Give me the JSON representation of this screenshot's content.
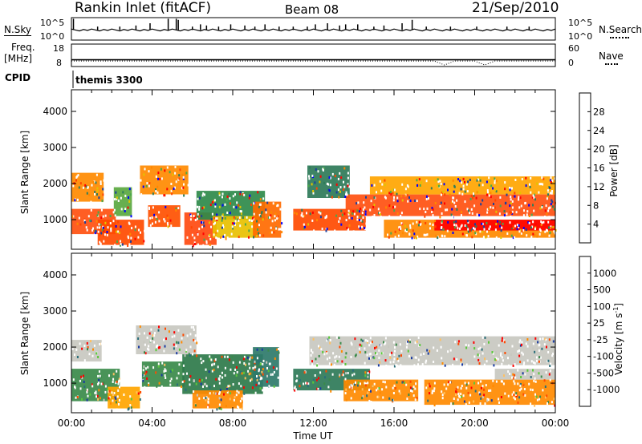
{
  "header": {
    "station": "Rankin Inlet (fitACF)",
    "beam": "Beam 08",
    "date": "21/Sep/2010"
  },
  "panel_labels": {
    "nsky": "N.Sky",
    "nsearch": "N.Search",
    "freq": "Freq.",
    "freq_unit": "[MHz]",
    "nave": "Nave",
    "cpid": "CPID",
    "cpid_value": "themis 3300"
  },
  "chart_data": [
    {
      "type": "line",
      "name": "noise",
      "left_axis": {
        "label": "N.Sky",
        "ticks": [
          "10^5",
          "10^0"
        ]
      },
      "right_axis": {
        "label": "N.Search",
        "ticks": [
          "10^5",
          "10^0"
        ]
      },
      "x": {
        "range_hours": [
          0,
          24
        ]
      },
      "baseline_level": 0.45,
      "spike_hours": [
        0.1,
        1.3,
        2.4,
        3.2,
        3.9,
        4.8,
        5.2,
        5.3,
        6.0,
        6.4,
        6.7,
        7.3,
        7.9,
        8.6,
        9.1,
        9.6,
        10.3,
        11.0,
        11.7,
        12.1,
        12.7,
        13.3,
        13.6,
        14.2,
        15.0,
        15.5,
        16.4,
        16.9,
        17.6,
        18.8,
        20.1,
        21.6,
        22.7
      ],
      "spike_levels": [
        0.95,
        0.6,
        0.6,
        0.65,
        0.75,
        0.95,
        0.95,
        0.9,
        0.6,
        0.7,
        0.65,
        0.6,
        0.7,
        0.65,
        0.6,
        0.7,
        0.6,
        0.6,
        0.6,
        0.7,
        0.75,
        0.65,
        0.7,
        0.7,
        0.6,
        0.65,
        0.75,
        0.9,
        0.6,
        0.6,
        0.6,
        0.6,
        0.6
      ]
    },
    {
      "type": "line",
      "name": "frequency-nave",
      "left_axis": {
        "label": "Freq. [MHz]",
        "ticks": [
          "18",
          "8"
        ],
        "range": [
          8,
          18
        ]
      },
      "right_axis": {
        "label": "Nave",
        "ticks": [
          "60",
          "0"
        ],
        "range": [
          0,
          60
        ]
      },
      "freq_mhz": 11,
      "dip_hours": [
        18.3,
        20.3
      ]
    },
    {
      "type": "heatmap",
      "name": "Power",
      "ylabel": "Slant Range [km]",
      "yticks": [
        "4000",
        "3000",
        "2000",
        "1000"
      ],
      "ylim": [
        180,
        4600
      ],
      "colorbar_label": "Power [dB]",
      "colorbar_ticks": [
        "28",
        "24",
        "20",
        "16",
        "12",
        "8",
        "4"
      ],
      "colorbar_colors": [
        "#0000ff",
        "#1c3f9c",
        "#2e7d5a",
        "#4aa84a",
        "#e2c400",
        "#ff8800",
        "#ff4500",
        "#ff0000"
      ],
      "bands": [
        {
          "t0": 0.0,
          "t1": 2.2,
          "r0": 600,
          "r1": 1300,
          "color": "#ff5010"
        },
        {
          "t0": 0.0,
          "t1": 1.6,
          "r0": 1500,
          "r1": 2300,
          "color": "#ff8a00"
        },
        {
          "t0": 1.3,
          "t1": 3.6,
          "r0": 300,
          "r1": 1000,
          "color": "#ff4a00"
        },
        {
          "t0": 2.1,
          "t1": 3.0,
          "r0": 1100,
          "r1": 1900,
          "color": "#5aa840"
        },
        {
          "t0": 3.4,
          "t1": 5.8,
          "r0": 1700,
          "r1": 2500,
          "color": "#ff8a00"
        },
        {
          "t0": 3.8,
          "t1": 5.4,
          "r0": 800,
          "r1": 1400,
          "color": "#ff5000"
        },
        {
          "t0": 5.6,
          "t1": 7.2,
          "r0": 300,
          "r1": 1200,
          "color": "#ff4a10"
        },
        {
          "t0": 6.2,
          "t1": 9.6,
          "r0": 1000,
          "r1": 1800,
          "color": "#2e8a4a"
        },
        {
          "t0": 7.0,
          "t1": 9.3,
          "r0": 500,
          "r1": 1100,
          "color": "#e8c000"
        },
        {
          "t0": 9.0,
          "t1": 10.4,
          "r0": 500,
          "r1": 1500,
          "color": "#ff6a00"
        },
        {
          "t0": 11.0,
          "t1": 14.6,
          "r0": 700,
          "r1": 1300,
          "color": "#ff4a00"
        },
        {
          "t0": 11.7,
          "t1": 13.8,
          "r0": 1600,
          "r1": 2500,
          "color": "#2e7a58"
        },
        {
          "t0": 13.6,
          "t1": 24.0,
          "r0": 1100,
          "r1": 1700,
          "color": "#ff5010"
        },
        {
          "t0": 14.8,
          "t1": 24.0,
          "r0": 1700,
          "r1": 2200,
          "color": "#ffa500"
        },
        {
          "t0": 15.5,
          "t1": 24.0,
          "r0": 500,
          "r1": 1000,
          "color": "#ff8a00"
        },
        {
          "t0": 18.0,
          "t1": 24.0,
          "r0": 700,
          "r1": 1000,
          "color": "#ff0000"
        }
      ]
    },
    {
      "type": "heatmap",
      "name": "Velocity",
      "ylabel": "Slant Range [km]",
      "yticks": [
        "4000",
        "3000",
        "2000",
        "1000"
      ],
      "ylim": [
        180,
        4600
      ],
      "x": {
        "range_hours": [
          0,
          24
        ],
        "ticks": [
          "00:00",
          "04:00",
          "08:00",
          "12:00",
          "16:00",
          "20:00",
          "00:00"
        ]
      },
      "xlabel": "Time UT",
      "colorbar_label": "Velocity [m s^-1]",
      "colorbar_ticks": [
        "1000",
        "500",
        "100",
        "25",
        "-25",
        "-100",
        "-500",
        "-1000"
      ],
      "colorbar_colors": [
        "#ff0000",
        "#ff4a00",
        "#ff8a00",
        "#ffc060",
        "#c8c8c0",
        "#5ac83a",
        "#3a8a4a",
        "#2a6e7a",
        "#1a3aa0"
      ],
      "bands": [
        {
          "t0": 0.0,
          "t1": 2.4,
          "r0": 500,
          "r1": 1400,
          "color": "#3a8a4a"
        },
        {
          "t0": 0.0,
          "t1": 1.5,
          "r0": 1600,
          "r1": 2200,
          "color": "#c8c8c0"
        },
        {
          "t0": 1.8,
          "t1": 3.4,
          "r0": 300,
          "r1": 900,
          "color": "#ffa500"
        },
        {
          "t0": 3.2,
          "t1": 6.2,
          "r0": 1800,
          "r1": 2600,
          "color": "#c8c8c0"
        },
        {
          "t0": 3.5,
          "t1": 5.6,
          "r0": 900,
          "r1": 1600,
          "color": "#3a8a4a"
        },
        {
          "t0": 5.5,
          "t1": 9.5,
          "r0": 700,
          "r1": 1800,
          "color": "#2e7a4a"
        },
        {
          "t0": 6.0,
          "t1": 8.5,
          "r0": 300,
          "r1": 800,
          "color": "#ff8a00"
        },
        {
          "t0": 9.0,
          "t1": 10.3,
          "r0": 900,
          "r1": 2000,
          "color": "#2e7a6a"
        },
        {
          "t0": 11.0,
          "t1": 14.8,
          "r0": 800,
          "r1": 1400,
          "color": "#2e7a58"
        },
        {
          "t0": 11.8,
          "t1": 24.0,
          "r0": 1500,
          "r1": 2300,
          "color": "#c8c8c0"
        },
        {
          "t0": 13.5,
          "t1": 17.2,
          "r0": 500,
          "r1": 1100,
          "color": "#ff8a00"
        },
        {
          "t0": 17.5,
          "t1": 24.0,
          "r0": 400,
          "r1": 1100,
          "color": "#ff8a00"
        },
        {
          "t0": 21.0,
          "t1": 24.0,
          "r0": 1100,
          "r1": 1400,
          "color": "#c8c8c0"
        }
      ]
    }
  ]
}
